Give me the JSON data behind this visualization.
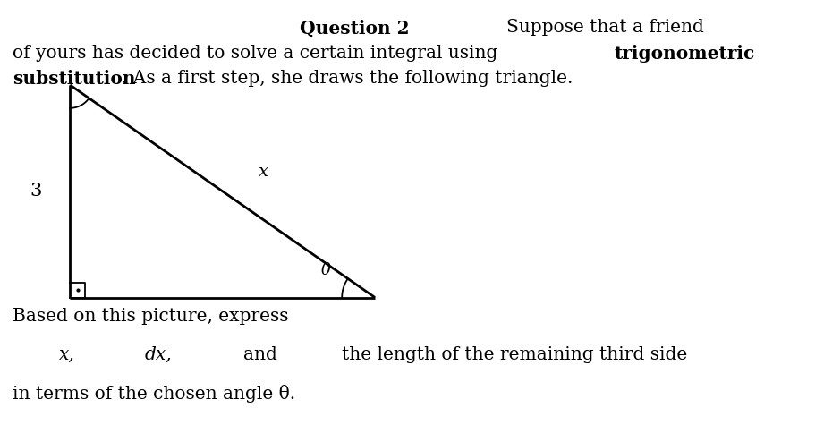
{
  "bg_color": "#ffffff",
  "text_color": "#000000",
  "triangle_color": "#000000",
  "triangle_lw": 2.0,
  "font_size_body": 14.5,
  "font_size_label": 14.5,
  "title_left": "Question 2",
  "title_right": "Suppose that a friend",
  "line2a": "of yours has decided to solve a certain integral using ",
  "line2b": "trigonometric",
  "line3a": "substitution",
  "line3b": ". As a first step, she draws the following triangle.",
  "label_vertical": "3",
  "label_hypotenuse": "x",
  "label_angle": "θ",
  "bottom_text1": "Based on this picture, express",
  "bottom_parts": [
    "x,",
    "dx,",
    "and",
    "the length of the remaining third side"
  ],
  "bottom_text3": "in terms of the chosen angle θ.",
  "tri_BL": [
    0.085,
    0.3
  ],
  "tri_TL": [
    0.085,
    0.8
  ],
  "tri_BR": [
    0.455,
    0.3
  ]
}
